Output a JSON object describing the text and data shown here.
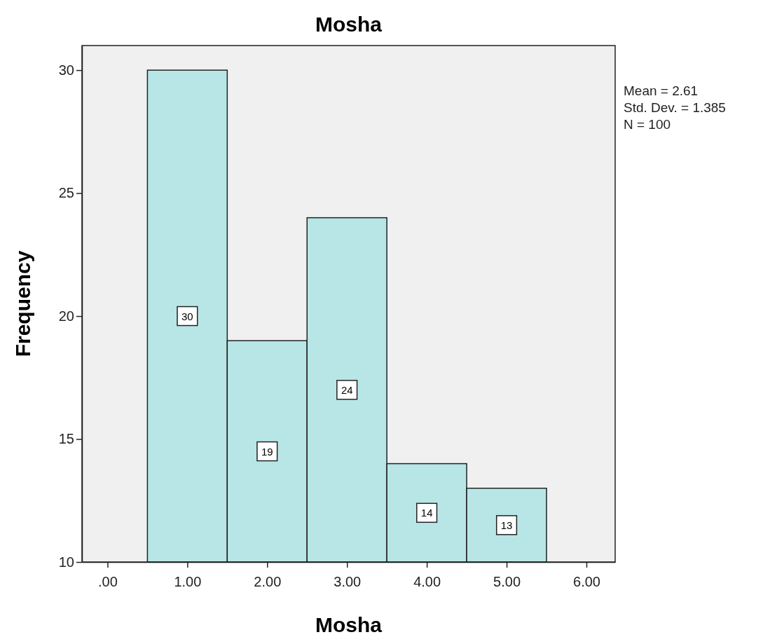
{
  "chart_data": {
    "type": "histogram",
    "title": "Mosha",
    "xlabel": "Mosha",
    "ylabel": "Frequency",
    "bins": [
      0.5,
      1.5,
      2.5,
      3.5,
      4.5,
      5.5
    ],
    "values": [
      30,
      19,
      24,
      14,
      13
    ],
    "color": "#b8e6e6",
    "xlim": [
      -0.32,
      6.36
    ],
    "xticks": [
      {
        "value": 0,
        "label": ".00"
      },
      {
        "value": 1,
        "label": "1.00"
      },
      {
        "value": 2,
        "label": "2.00"
      },
      {
        "value": 3,
        "label": "3.00"
      },
      {
        "value": 4,
        "label": "4.00"
      },
      {
        "value": 5,
        "label": "5.00"
      },
      {
        "value": 6,
        "label": "6.00"
      }
    ],
    "ylim": [
      10,
      31
    ],
    "yticks": [
      10,
      15,
      20,
      25,
      30
    ],
    "data_labels": true,
    "grid": false,
    "annotations": [
      "Mean = 2.61",
      "Std. Dev. = 1.385",
      "N = 100"
    ]
  }
}
